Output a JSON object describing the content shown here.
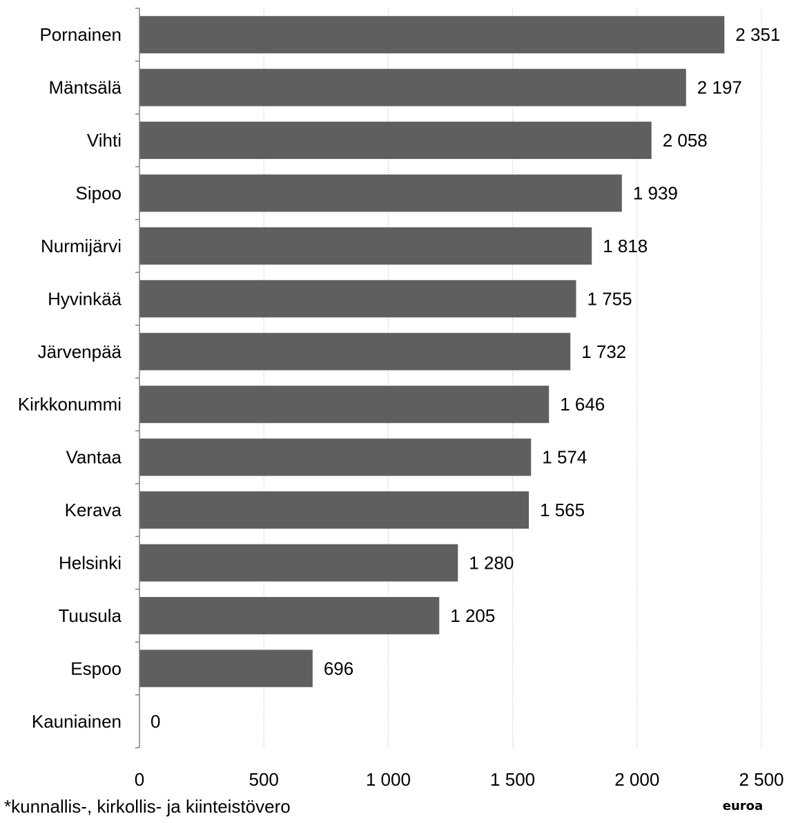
{
  "chart_data": {
    "type": "bar",
    "orientation": "horizontal",
    "categories": [
      "Pornainen",
      "Mäntsälä",
      "Vihti",
      "Sipoo",
      "Nurmijärvi",
      "Hyvinkää",
      "Järvenpää",
      "Kirkkonummi",
      "Vantaa",
      "Kerava",
      "Helsinki",
      "Tuusula",
      "Espoo",
      "Kauniainen"
    ],
    "values": [
      2351,
      2197,
      2058,
      1939,
      1818,
      1755,
      1732,
      1646,
      1574,
      1565,
      1280,
      1205,
      696,
      0
    ],
    "value_labels": [
      "2 351",
      "2 197",
      "2 058",
      "1 939",
      "1 818",
      "1 755",
      "1 732",
      "1 646",
      "1 574",
      "1 565",
      "1 280",
      "1 205",
      "696",
      "0"
    ],
    "xlim": [
      0,
      2500
    ],
    "x_ticks": [
      0,
      500,
      1000,
      1500,
      2000,
      2500
    ],
    "x_tick_labels": [
      "0",
      "500",
      "1 000",
      "1 500",
      "2 000",
      "2 500"
    ],
    "xlabel": "euroa",
    "title": "",
    "grid": "vertical dotted",
    "bar_color": "#5f5f5f",
    "grid_color": "#b0b0b0",
    "axis_color": "#808080"
  },
  "footnote": "*kunnallis-, kirkollis- ja kiinteistövero"
}
